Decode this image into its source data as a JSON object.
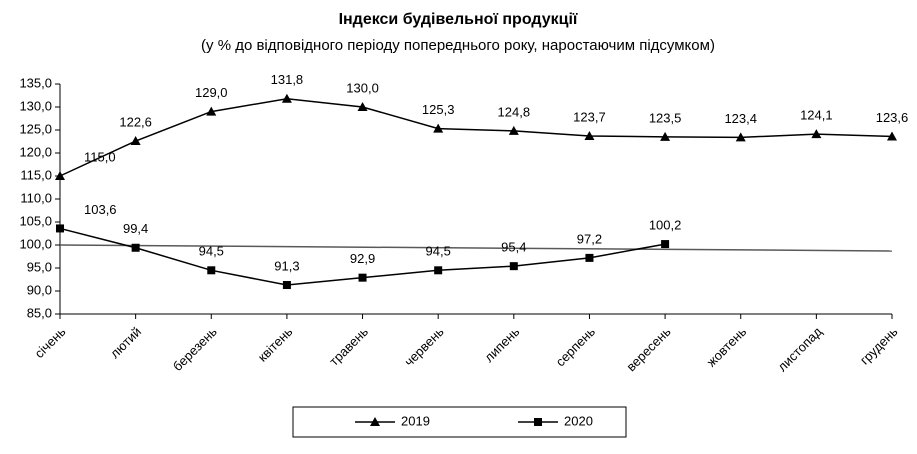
{
  "chart_data": {
    "type": "line",
    "title": "Індекси будівельної продукції",
    "subtitle": "(у % до відповідного періоду попереднього року, наростаючим підсумком)",
    "categories": [
      "січень",
      "лютий",
      "березень",
      "квітень",
      "травень",
      "червень",
      "липень",
      "серпень",
      "вересень",
      "жовтень",
      "листопад",
      "грудень"
    ],
    "series": [
      {
        "name": "2019",
        "color": "#000000",
        "marker": "triangle",
        "values": [
          115.0,
          122.6,
          129.0,
          131.8,
          130.0,
          125.3,
          124.8,
          123.7,
          123.5,
          123.4,
          124.1,
          123.6
        ],
        "value_labels": [
          "115,0",
          "122,6",
          "129,0",
          "131,8",
          "130,0",
          "125,3",
          "124,8",
          "123,7",
          "123,5",
          "123,4",
          "124,1",
          "123,6"
        ]
      },
      {
        "name": "2020",
        "color": "#000000",
        "marker": "square",
        "values": [
          103.6,
          99.4,
          94.5,
          91.3,
          92.9,
          94.5,
          95.4,
          97.2,
          100.2,
          null,
          null,
          null
        ],
        "value_labels": [
          "103,6",
          "99,4",
          "94,5",
          "91,3",
          "92,9",
          "94,5",
          "95,4",
          "97,2",
          "100,2",
          null,
          null,
          null
        ]
      }
    ],
    "trendline": {
      "start": 100.0,
      "end": 98.7,
      "color": "#595959"
    },
    "ylim": [
      85,
      135
    ],
    "yticks": [
      {
        "value": 85,
        "label": "85,0"
      },
      {
        "value": 90,
        "label": "90,0"
      },
      {
        "value": 95,
        "label": "95,0"
      },
      {
        "value": 100,
        "label": "100,0"
      },
      {
        "value": 105,
        "label": "105,0"
      },
      {
        "value": 110,
        "label": "110,0"
      },
      {
        "value": 115,
        "label": "115,0"
      },
      {
        "value": 120,
        "label": "120,0"
      },
      {
        "value": 125,
        "label": "125,0"
      },
      {
        "value": 130,
        "label": "130,0"
      },
      {
        "value": 135,
        "label": "135,0"
      }
    ],
    "legend": "bottom"
  }
}
